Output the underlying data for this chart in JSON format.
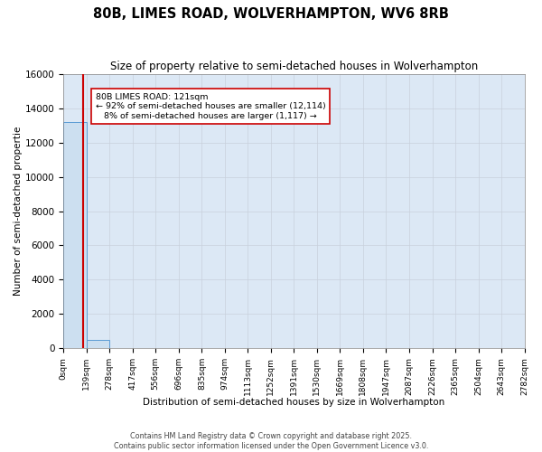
{
  "title": "80B, LIMES ROAD, WOLVERHAMPTON, WV6 8RB",
  "subtitle": "Size of property relative to semi-detached houses in Wolverhampton",
  "xlabel": "Distribution of semi-detached houses by size in Wolverhampton",
  "ylabel": "Number of semi-detached propertie",
  "property_size": 121,
  "property_label": "80B LIMES ROAD: 121sqm",
  "pct_smaller": 92,
  "count_smaller": 12114,
  "pct_larger": 8,
  "count_larger": 1117,
  "bin_edges": [
    0,
    139,
    278,
    417,
    556,
    696,
    835,
    974,
    1113,
    1252,
    1391,
    1530,
    1669,
    1808,
    1947,
    2087,
    2226,
    2365,
    2504,
    2643,
    2782
  ],
  "bar_heights": [
    13200,
    500,
    0,
    0,
    0,
    0,
    0,
    0,
    0,
    0,
    0,
    0,
    0,
    0,
    0,
    0,
    0,
    0,
    0,
    0
  ],
  "bar_color": "#ccdff0",
  "bar_edgecolor": "#5b9bd5",
  "red_line_color": "#cc0000",
  "annotation_box_color": "#ffffff",
  "annotation_box_edgecolor": "#cc0000",
  "background_color": "#dce8f5",
  "grid_color": "#c8d0dc",
  "ylim": [
    0,
    16000
  ],
  "yticks": [
    0,
    2000,
    4000,
    6000,
    8000,
    10000,
    12000,
    14000,
    16000
  ],
  "footer_line1": "Contains HM Land Registry data © Crown copyright and database right 2025.",
  "footer_line2": "Contains public sector information licensed under the Open Government Licence v3.0."
}
